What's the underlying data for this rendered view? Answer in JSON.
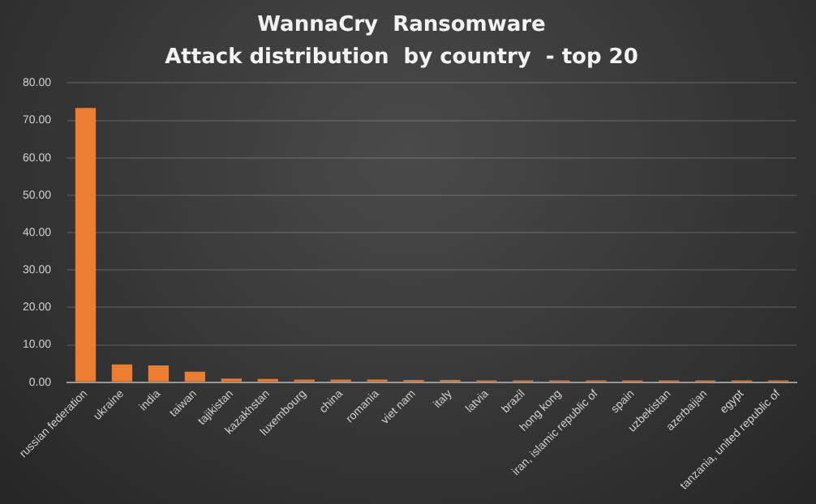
{
  "chart_data": {
    "type": "bar",
    "title": "WannaCry  Ransomware",
    "subtitle": "Attack distribution  by country  - top 20",
    "categories": [
      "russian federation",
      "ukraine",
      "india",
      "taiwan",
      "tajikistan",
      "kazakhstan",
      "luxembourg",
      "china",
      "romania",
      "viet nam",
      "italy",
      "latvia",
      "brazil",
      "hong kong",
      "iran, islamic republic of",
      "spain",
      "uzbekistan",
      "azerbaijan",
      "egypt",
      "tanzania, united republic of"
    ],
    "values": [
      73.3,
      4.8,
      4.5,
      2.8,
      1.0,
      0.9,
      0.7,
      0.7,
      0.7,
      0.6,
      0.6,
      0.5,
      0.5,
      0.5,
      0.5,
      0.5,
      0.5,
      0.5,
      0.5,
      0.5
    ],
    "color": "#ed7d31",
    "ylim": [
      0,
      80
    ],
    "yticks": [
      {
        "value": 0,
        "label": "0.00"
      },
      {
        "value": 10,
        "label": "10.00"
      },
      {
        "value": 20,
        "label": "20.00"
      },
      {
        "value": 30,
        "label": "30.00"
      },
      {
        "value": 40,
        "label": "40.00"
      },
      {
        "value": 50,
        "label": "50.00"
      },
      {
        "value": 60,
        "label": "60.00"
      },
      {
        "value": 70,
        "label": "70.00"
      },
      {
        "value": 80,
        "label": "80.00"
      }
    ],
    "grid": "y",
    "legend": false
  }
}
